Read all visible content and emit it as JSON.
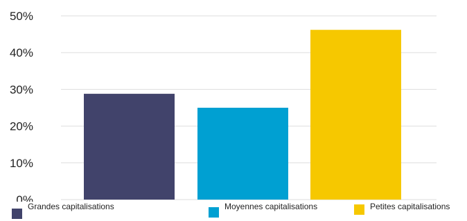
{
  "chart_data": {
    "type": "bar",
    "categories": [
      "Grandes capitalisations",
      "Moyennes capitalisations",
      "Petites capitalisations"
    ],
    "values": [
      28.8,
      25.0,
      46.2
    ],
    "colors": [
      "#41436b",
      "#00a0d2",
      "#f6c800"
    ],
    "ylim": [
      0,
      50
    ],
    "yticks": [
      "0%",
      "10%",
      "20%",
      "30%",
      "40%",
      "50%"
    ],
    "grid": true,
    "legend_position": "bottom",
    "title": "",
    "xlabel": "",
    "ylabel": ""
  }
}
